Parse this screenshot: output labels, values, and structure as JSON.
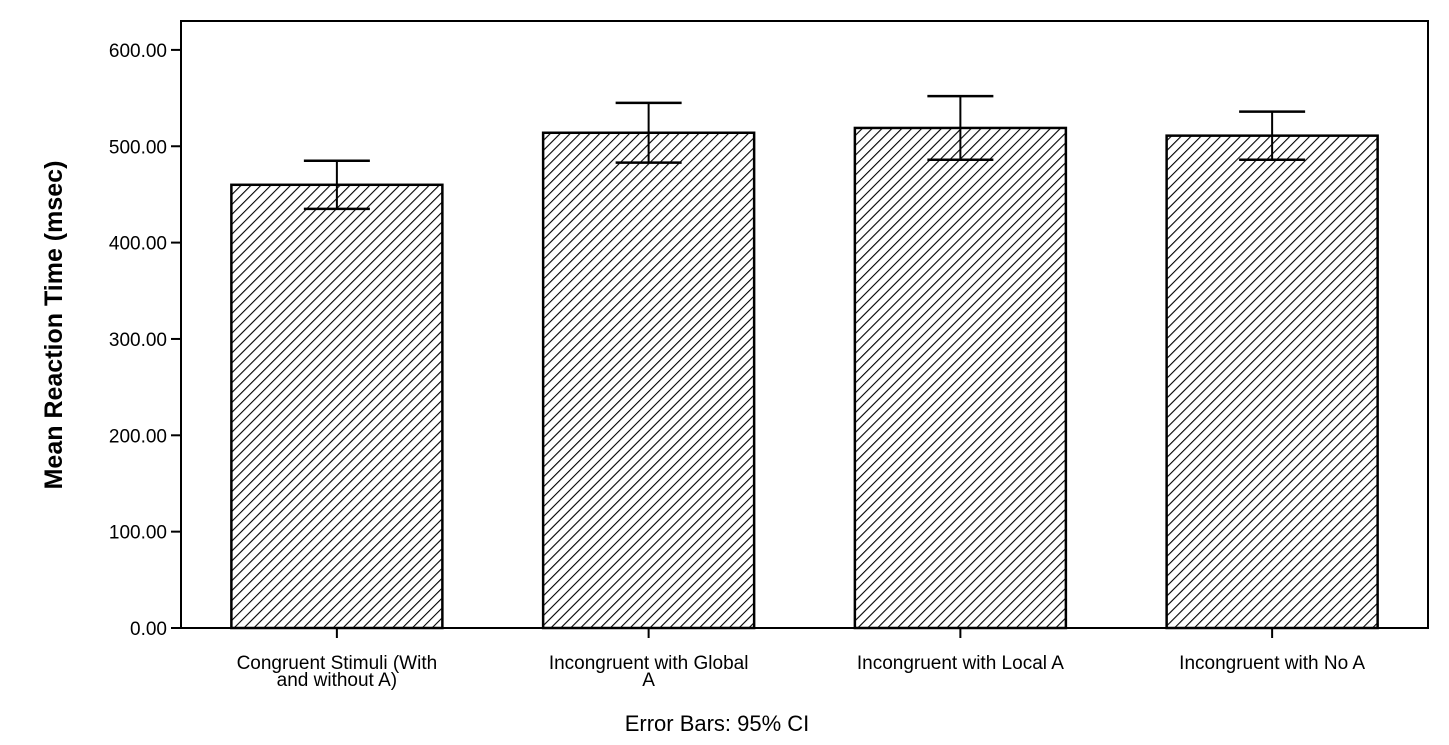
{
  "chart_data": {
    "type": "bar",
    "categories": [
      [
        "Congruent Stimuli (With",
        "and without A)"
      ],
      [
        "Incongruent with Global",
        "A"
      ],
      [
        "Incongruent with Local A"
      ],
      [
        "Incongruent with No A"
      ]
    ],
    "values": [
      460,
      514,
      519,
      511
    ],
    "error_bars": [
      {
        "low": 435,
        "high": 485
      },
      {
        "low": 483,
        "high": 545
      },
      {
        "low": 486,
        "high": 552
      },
      {
        "low": 486,
        "high": 536
      }
    ],
    "ylabel": "Mean Reaction Time (msec)",
    "xlabel": "",
    "yticks": [
      "0.00",
      "100.00",
      "200.00",
      "300.00",
      "400.00",
      "500.00",
      "600.00"
    ],
    "ylim": [
      0,
      630
    ],
    "footnote": "Error Bars: 95% CI",
    "bar_fill": "hatched",
    "bar_stroke": "#000000",
    "grid": false
  }
}
